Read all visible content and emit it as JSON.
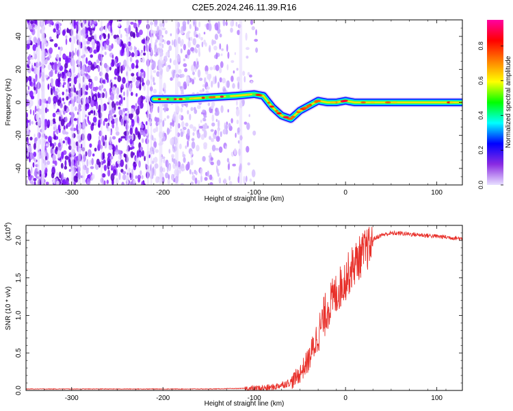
{
  "title": "C2E5.2024.246.11.39.R16",
  "chart_data": [
    {
      "type": "heatmap",
      "xlabel": "Height of straight line (km)",
      "ylabel": "Frequency (Hz)",
      "xlim": [
        -350,
        128
      ],
      "ylim": [
        -50,
        50
      ],
      "x_ticks": [
        -300,
        -200,
        -100,
        0,
        100
      ],
      "y_ticks": [
        -40,
        -20,
        0,
        20,
        40
      ],
      "colorbar": {
        "label": "Normalized spectral amplitude",
        "range": [
          0,
          0.95
        ],
        "ticks": [
          "0.0",
          "0.2",
          "0.4",
          "0.6",
          "0.8"
        ],
        "colors": [
          "#e8e0ff",
          "#8a2be2",
          "#0000ff",
          "#00ffff",
          "#00ff00",
          "#ffff00",
          "#ff8000",
          "#ff0000",
          "#ff00a0"
        ]
      },
      "signal_track": {
        "x": [
          -210,
          -180,
          -150,
          -120,
          -100,
          -90,
          -80,
          -70,
          -60,
          -50,
          -40,
          -30,
          -20,
          -10,
          0,
          10,
          50,
          128
        ],
        "frequency": [
          2,
          2,
          3,
          4,
          5,
          4,
          -3,
          -8,
          -10,
          -5,
          -2,
          1,
          0,
          0,
          1,
          0,
          0,
          0
        ]
      },
      "noise_region_x": [
        -350,
        -100
      ]
    },
    {
      "type": "line",
      "xlabel": "Height of straight line (km)",
      "ylabel": "SNR (10 * v/v)",
      "y_multiplier_label": "(x10",
      "y_multiplier_exp": "4",
      "color": "#e8302a",
      "xlim": [
        -350,
        128
      ],
      "ylim": [
        0,
        2.2
      ],
      "x_ticks": [
        -300,
        -200,
        -100,
        0,
        100
      ],
      "y_ticks": [
        "0.0",
        "0.5",
        "1.0",
        "1.5",
        "2.0"
      ],
      "series": [
        {
          "x": [
            -350,
            -300,
            -200,
            -150,
            -100,
            -80,
            -60,
            -50,
            -40,
            -30,
            -20,
            -10,
            0,
            10,
            20,
            30,
            40,
            50,
            60,
            80,
            100,
            128
          ],
          "y": [
            0.02,
            0.02,
            0.02,
            0.02,
            0.03,
            0.05,
            0.12,
            0.25,
            0.45,
            0.8,
            1.15,
            1.35,
            1.55,
            1.75,
            1.9,
            2.02,
            2.08,
            2.1,
            2.1,
            2.08,
            2.06,
            2.03
          ]
        }
      ]
    }
  ]
}
